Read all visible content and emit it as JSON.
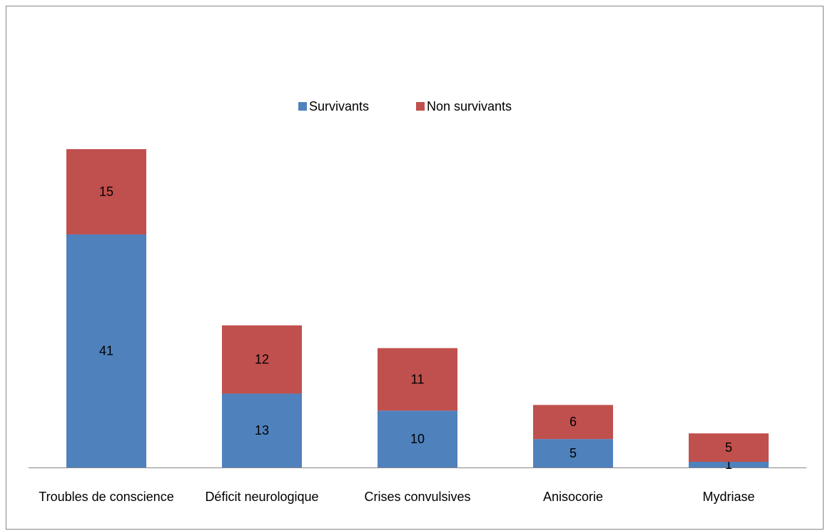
{
  "chart_data": {
    "type": "stacked_bar",
    "categories": [
      "Troubles de conscience",
      "Déficit neurologique",
      "Crises convulsives",
      "Anisocorie",
      "Mydriase"
    ],
    "series": [
      {
        "name": "Survivants",
        "color": "#4f81bd",
        "values": [
          41,
          13,
          10,
          5,
          1
        ]
      },
      {
        "name": "Non survivants",
        "color": "#c0504d",
        "values": [
          15,
          12,
          11,
          6,
          5
        ]
      }
    ],
    "legend": "top"
  }
}
